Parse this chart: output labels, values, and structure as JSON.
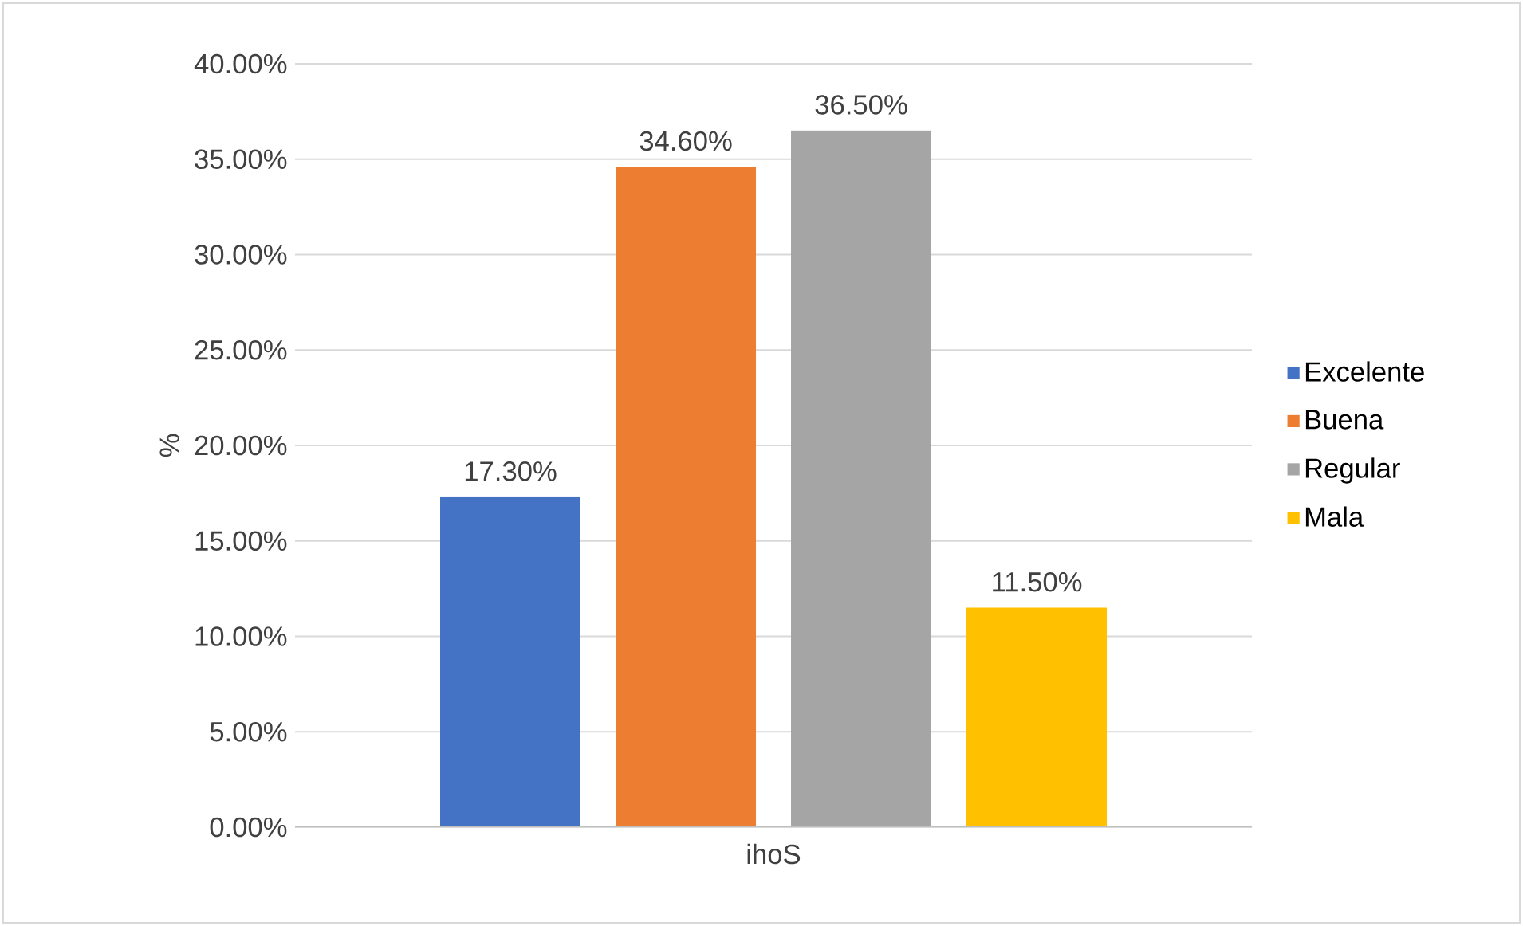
{
  "chart_data": {
    "type": "bar",
    "ylabel": "%",
    "categories": [
      "ihoS"
    ],
    "series": [
      {
        "name": "Excelente",
        "color": "#4472c4",
        "values": [
          17.3
        ],
        "value_labels": [
          "17.30%"
        ]
      },
      {
        "name": "Buena",
        "color": "#ed7d31",
        "values": [
          34.6
        ],
        "value_labels": [
          "34.60%"
        ]
      },
      {
        "name": "Regular",
        "color": "#a5a5a5",
        "values": [
          36.5
        ],
        "value_labels": [
          "36.50%"
        ]
      },
      {
        "name": "Mala",
        "color": "#ffc000",
        "values": [
          11.5
        ],
        "value_labels": [
          "11.50%"
        ]
      }
    ],
    "ylim": [
      0,
      40
    ],
    "yticks": [
      {
        "value": 0,
        "label": "0.00%"
      },
      {
        "value": 5,
        "label": "5.00%"
      },
      {
        "value": 10,
        "label": "10.00%"
      },
      {
        "value": 15,
        "label": "15.00%"
      },
      {
        "value": 20,
        "label": "20.00%"
      },
      {
        "value": 25,
        "label": "25.00%"
      },
      {
        "value": 30,
        "label": "30.00%"
      },
      {
        "value": 35,
        "label": "35.00%"
      },
      {
        "value": 40,
        "label": "40.00%"
      }
    ],
    "grid": "y",
    "legend": "right"
  }
}
